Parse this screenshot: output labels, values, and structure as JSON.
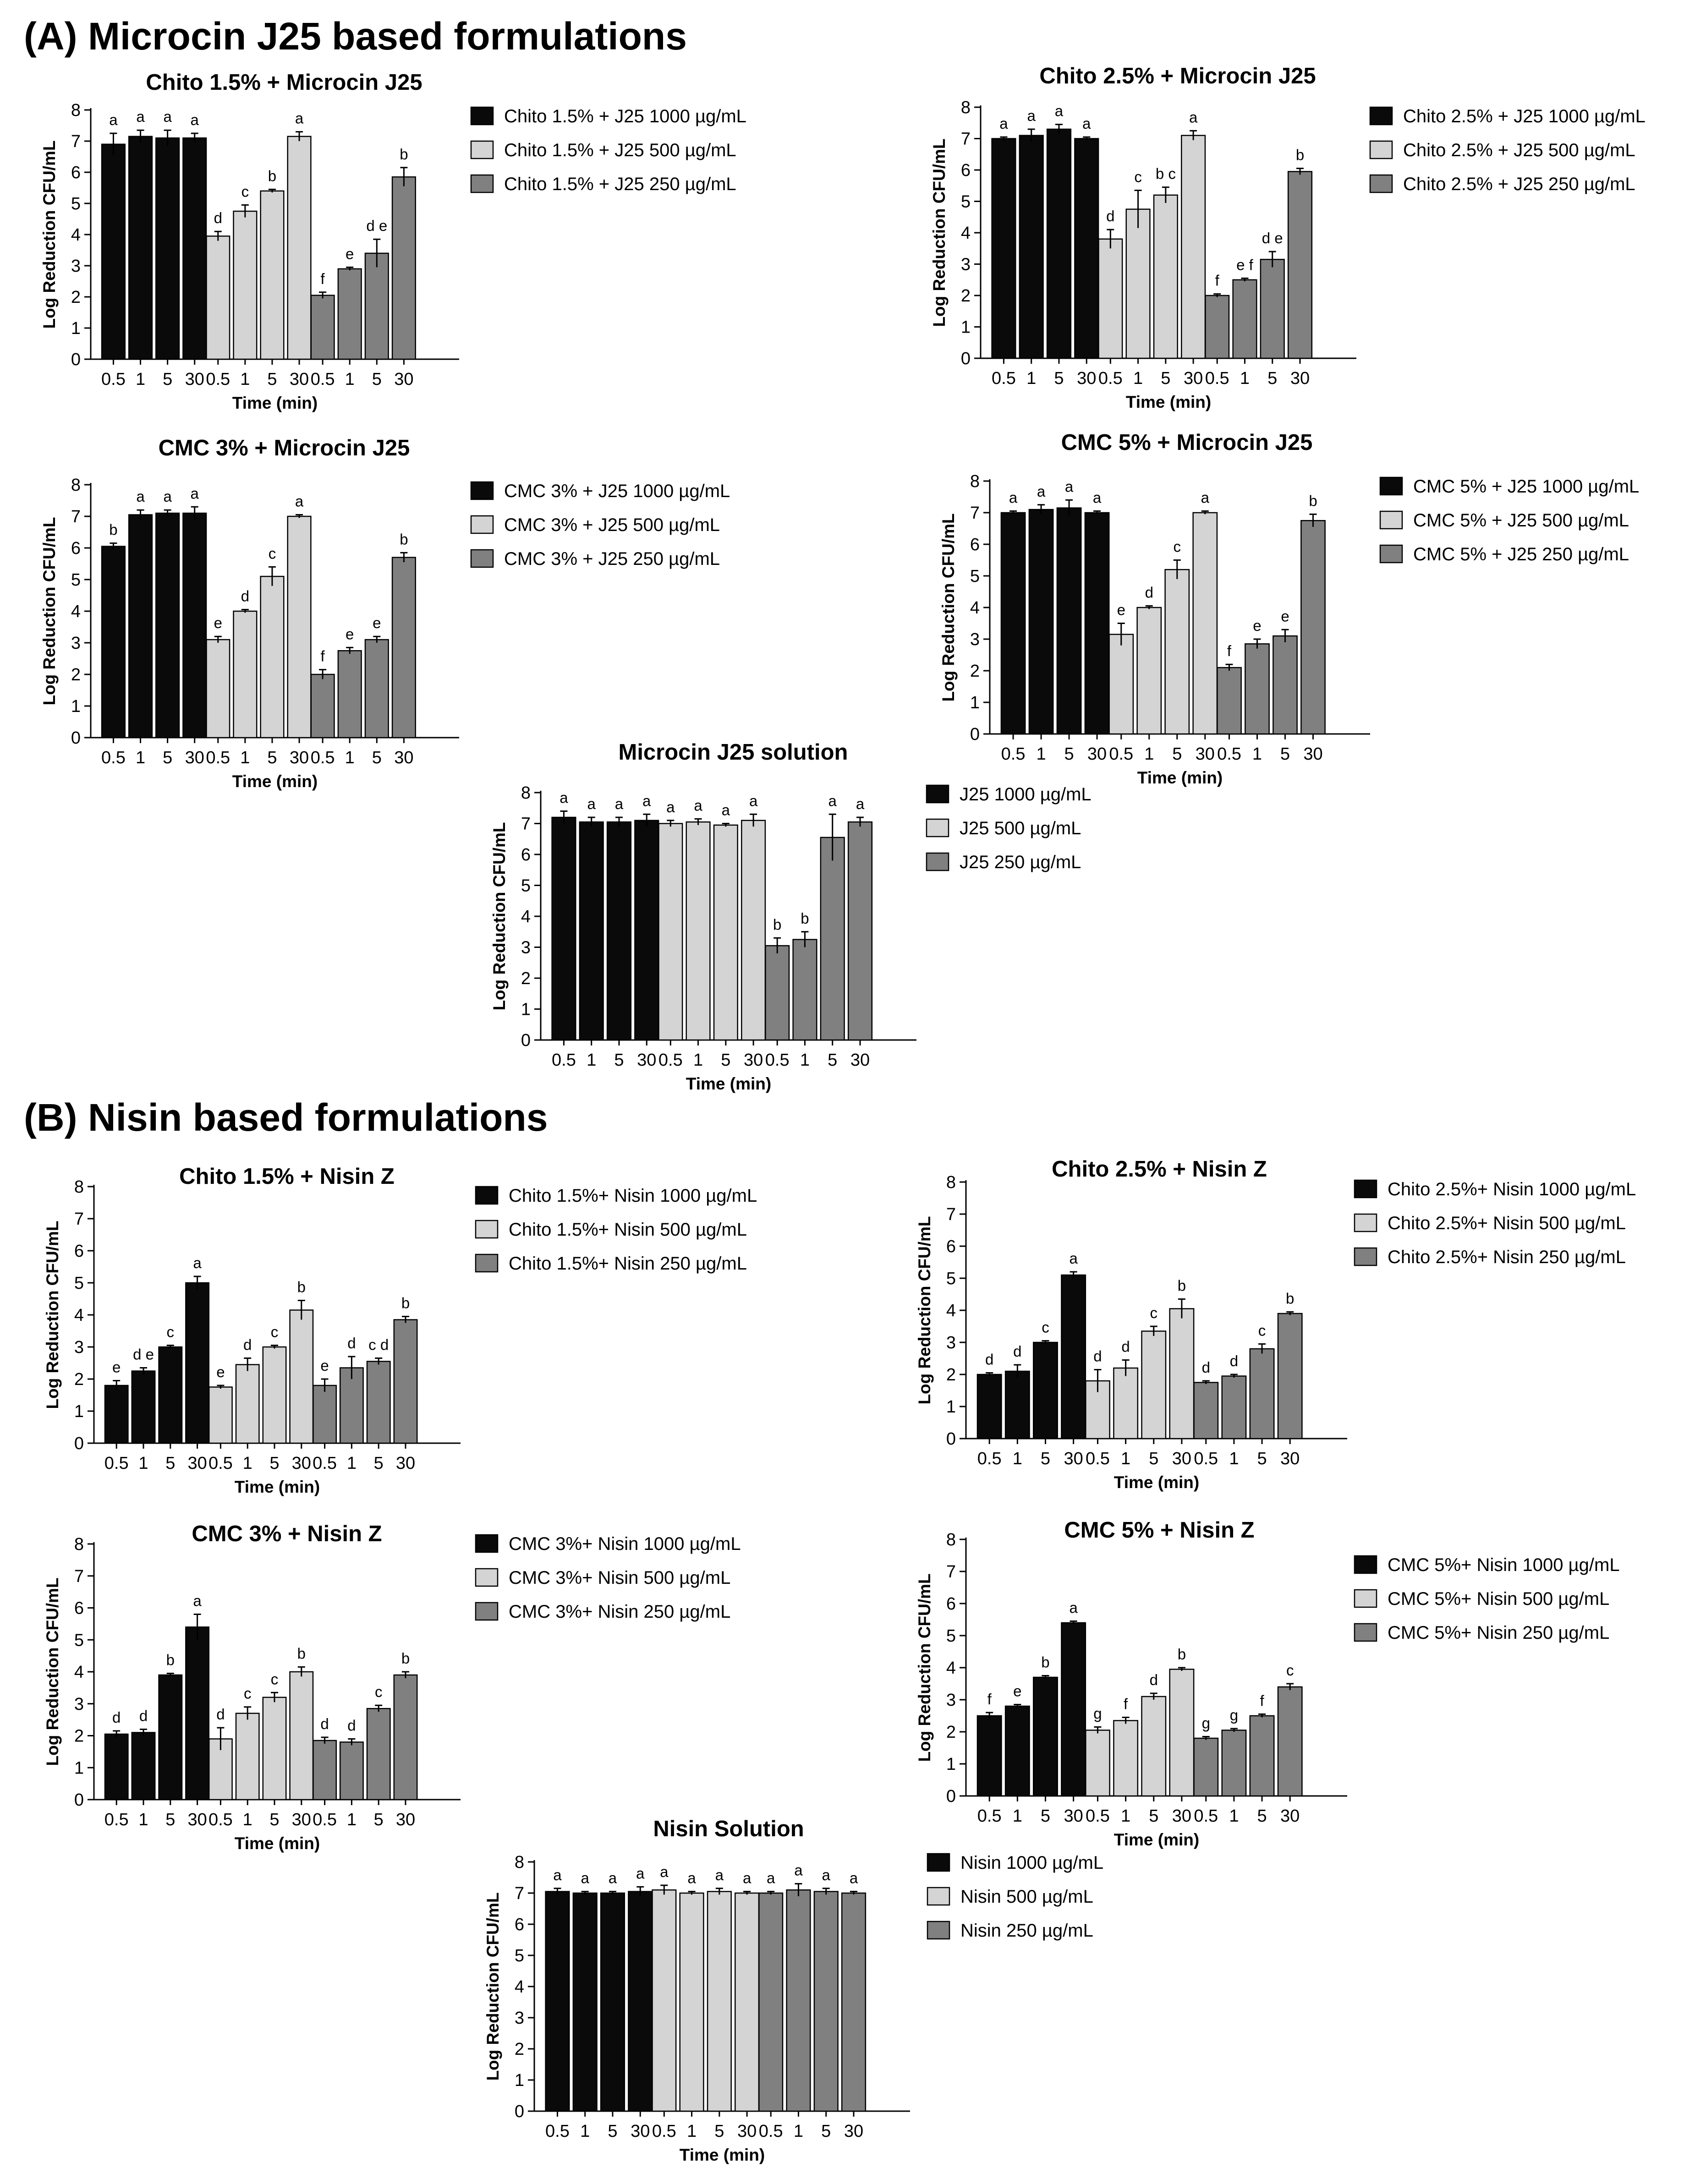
{
  "sections": [
    {
      "label": "(A) Microcin J25 based formulations"
    },
    {
      "label": "(B) Nisin based formulations"
    }
  ],
  "common": {
    "xlabel": "Time  (min)",
    "ylabel": "Log Reduction CFU/mL",
    "time_ticks": [
      "0.5",
      "1",
      "5",
      "30"
    ],
    "colors": [
      "#0a0a0a",
      "#d4d4d4",
      "#808080"
    ]
  },
  "chart_data": [
    {
      "type": "bar",
      "title": "Chito 1.5% + Microcin J25",
      "xlabel": "Time  (min)",
      "ylabel": "Log Reduction CFU/mL",
      "ylim": [
        0,
        8
      ],
      "categories": [
        "0.5",
        "1",
        "5",
        "30"
      ],
      "series": [
        {
          "name": "Chito 1.5% + J25 1000 µg/mL",
          "values": [
            6.9,
            7.15,
            7.1,
            7.1
          ],
          "errors": [
            0.35,
            0.2,
            0.25,
            0.15
          ],
          "labels": [
            "a",
            "a",
            "a",
            "a"
          ]
        },
        {
          "name": "Chito 1.5% + J25 500 µg/mL",
          "values": [
            3.95,
            4.75,
            5.4,
            7.15
          ],
          "errors": [
            0.15,
            0.2,
            0.05,
            0.15
          ],
          "labels": [
            "d",
            "c",
            "b",
            "a"
          ]
        },
        {
          "name": "Chito 1.5% + J25 250 µg/mL",
          "values": [
            2.05,
            2.9,
            3.4,
            5.85
          ],
          "errors": [
            0.1,
            0.05,
            0.45,
            0.3
          ],
          "labels": [
            "f",
            "e",
            "d e",
            "b"
          ]
        }
      ]
    },
    {
      "type": "bar",
      "title": "Chito 2.5% + Microcin J25",
      "xlabel": "Time  (min)",
      "ylabel": "Log Reduction CFU/mL",
      "ylim": [
        0,
        8
      ],
      "categories": [
        "0.5",
        "1",
        "5",
        "30"
      ],
      "series": [
        {
          "name": "Chito 2.5% + J25 1000 µg/mL",
          "values": [
            7.0,
            7.1,
            7.3,
            7.0
          ],
          "errors": [
            0.05,
            0.2,
            0.15,
            0.05
          ],
          "labels": [
            "a",
            "a",
            "a",
            "a"
          ]
        },
        {
          "name": "Chito 2.5% + J25 500 µg/mL",
          "values": [
            3.8,
            4.75,
            5.2,
            7.1
          ],
          "errors": [
            0.3,
            0.6,
            0.25,
            0.15
          ],
          "labels": [
            "d",
            "c",
            "b c",
            "a"
          ]
        },
        {
          "name": "Chito 2.5% + J25 250 µg/mL",
          "values": [
            2.0,
            2.5,
            3.15,
            5.95
          ],
          "errors": [
            0.05,
            0.05,
            0.25,
            0.1
          ],
          "labels": [
            "f",
            "e f",
            "d e",
            "b"
          ]
        }
      ]
    },
    {
      "type": "bar",
      "title": "CMC 3% + Microcin J25",
      "xlabel": "Time  (min)",
      "ylabel": "Log Reduction CFU/mL",
      "ylim": [
        0,
        8
      ],
      "categories": [
        "0.5",
        "1",
        "5",
        "30"
      ],
      "series": [
        {
          "name": "CMC 3% + J25 1000 µg/mL",
          "values": [
            6.05,
            7.05,
            7.1,
            7.1
          ],
          "errors": [
            0.1,
            0.15,
            0.1,
            0.2
          ],
          "labels": [
            "b",
            "a",
            "a",
            "a"
          ]
        },
        {
          "name": "CMC 3% + J25 500 µg/mL",
          "values": [
            3.1,
            4.0,
            5.1,
            7.0
          ],
          "errors": [
            0.1,
            0.05,
            0.3,
            0.05
          ],
          "labels": [
            "e",
            "d",
            "c",
            "a"
          ]
        },
        {
          "name": "CMC 3% + J25 250 µg/mL",
          "values": [
            2.0,
            2.75,
            3.1,
            5.7
          ],
          "errors": [
            0.15,
            0.1,
            0.1,
            0.15
          ],
          "labels": [
            "f",
            "e",
            "e",
            "b"
          ]
        }
      ]
    },
    {
      "type": "bar",
      "title": "CMC 5% + Microcin J25",
      "xlabel": "Time  (min)",
      "ylabel": "Log Reduction CFU/mL",
      "ylim": [
        0,
        8
      ],
      "categories": [
        "0.5",
        "1",
        "5",
        "30"
      ],
      "series": [
        {
          "name": "CMC 5% + J25 1000 µg/mL",
          "values": [
            7.0,
            7.1,
            7.15,
            7.0
          ],
          "errors": [
            0.05,
            0.15,
            0.25,
            0.05
          ],
          "labels": [
            "a",
            "a",
            "a",
            "a"
          ]
        },
        {
          "name": "CMC 5% + J25 500 µg/mL",
          "values": [
            3.15,
            4.0,
            5.2,
            7.0
          ],
          "errors": [
            0.35,
            0.05,
            0.3,
            0.05
          ],
          "labels": [
            "e",
            "d",
            "c",
            "a"
          ]
        },
        {
          "name": "CMC 5% + J25 250 µg/mL",
          "values": [
            2.1,
            2.85,
            3.1,
            6.75
          ],
          "errors": [
            0.1,
            0.15,
            0.2,
            0.2
          ],
          "labels": [
            "f",
            "e",
            "e",
            "b"
          ]
        }
      ]
    },
    {
      "type": "bar",
      "title": "Microcin J25 solution",
      "xlabel": "Time  (min)",
      "ylabel": "Log Reduction CFU/mL",
      "ylim": [
        0,
        8
      ],
      "categories": [
        "0.5",
        "1",
        "5",
        "30"
      ],
      "series": [
        {
          "name": "J25 1000 µg/mL",
          "values": [
            7.2,
            7.05,
            7.05,
            7.1
          ],
          "errors": [
            0.2,
            0.15,
            0.15,
            0.2
          ],
          "labels": [
            "a",
            "a",
            "a",
            "a"
          ]
        },
        {
          "name": "J25 500 µg/mL",
          "values": [
            7.0,
            7.05,
            6.95,
            7.1
          ],
          "errors": [
            0.1,
            0.1,
            0.05,
            0.2
          ],
          "labels": [
            "a",
            "a",
            "a",
            "a"
          ]
        },
        {
          "name": "J25 250 µg/mL",
          "values": [
            3.05,
            3.25,
            6.55,
            7.05
          ],
          "errors": [
            0.25,
            0.25,
            0.75,
            0.15
          ],
          "labels": [
            "b",
            "b",
            "a",
            "a"
          ]
        }
      ]
    },
    {
      "type": "bar",
      "title": "Chito 1.5% + Nisin Z",
      "xlabel": "Time  (min)",
      "ylabel": "Log Reduction CFU/mL",
      "ylim": [
        0,
        8
      ],
      "categories": [
        "0.5",
        "1",
        "5",
        "30"
      ],
      "series": [
        {
          "name": "Chito 1.5%+ Nisin 1000 µg/mL",
          "values": [
            1.8,
            2.25,
            3.0,
            5.0
          ],
          "errors": [
            0.15,
            0.1,
            0.05,
            0.2
          ],
          "labels": [
            "e",
            "d e",
            "c",
            "a"
          ]
        },
        {
          "name": "Chito 1.5%+ Nisin 500 µg/mL",
          "values": [
            1.75,
            2.45,
            3.0,
            4.15
          ],
          "errors": [
            0.05,
            0.2,
            0.05,
            0.3
          ],
          "labels": [
            "e",
            "d",
            "c",
            "b"
          ]
        },
        {
          "name": "Chito 1.5%+ Nisin 250 µg/mL",
          "values": [
            1.8,
            2.35,
            2.55,
            3.85
          ],
          "errors": [
            0.2,
            0.35,
            0.1,
            0.1
          ],
          "labels": [
            "e",
            "d",
            "c d",
            "b"
          ]
        }
      ]
    },
    {
      "type": "bar",
      "title": "Chito 2.5% + Nisin Z",
      "xlabel": "Time  (min)",
      "ylabel": "Log Reduction CFU/mL",
      "ylim": [
        0,
        8
      ],
      "categories": [
        "0.5",
        "1",
        "5",
        "30"
      ],
      "series": [
        {
          "name": "Chito 2.5%+ Nisin 1000 µg/mL",
          "values": [
            2.0,
            2.1,
            3.0,
            5.1
          ],
          "errors": [
            0.05,
            0.2,
            0.05,
            0.1
          ],
          "labels": [
            "d",
            "d",
            "c",
            "a"
          ]
        },
        {
          "name": "Chito 2.5%+ Nisin 500 µg/mL",
          "values": [
            1.8,
            2.2,
            3.35,
            4.05
          ],
          "errors": [
            0.35,
            0.25,
            0.15,
            0.3
          ],
          "labels": [
            "d",
            "d",
            "c",
            "b"
          ]
        },
        {
          "name": "Chito 2.5%+ Nisin 250 µg/mL",
          "values": [
            1.75,
            1.95,
            2.8,
            3.9
          ],
          "errors": [
            0.05,
            0.05,
            0.15,
            0.05
          ],
          "labels": [
            "d",
            "d",
            "c",
            "b"
          ]
        }
      ]
    },
    {
      "type": "bar",
      "title": "CMC 3% + Nisin Z",
      "xlabel": "Time  (min)",
      "ylabel": "Log Reduction CFU/mL",
      "ylim": [
        0,
        8
      ],
      "categories": [
        "0.5",
        "1",
        "5",
        "30"
      ],
      "series": [
        {
          "name": "CMC 3%+ Nisin 1000 µg/mL",
          "values": [
            2.05,
            2.1,
            3.9,
            5.4
          ],
          "errors": [
            0.1,
            0.1,
            0.05,
            0.4
          ],
          "labels": [
            "d",
            "d",
            "b",
            "a"
          ]
        },
        {
          "name": "CMC 3%+ Nisin 500 µg/mL",
          "values": [
            1.9,
            2.7,
            3.2,
            4.0
          ],
          "errors": [
            0.35,
            0.2,
            0.15,
            0.15
          ],
          "labels": [
            "d",
            "c",
            "c",
            "b"
          ]
        },
        {
          "name": "CMC 3%+ Nisin 250 µg/mL",
          "values": [
            1.85,
            1.8,
            2.85,
            3.9
          ],
          "errors": [
            0.1,
            0.1,
            0.1,
            0.1
          ],
          "labels": [
            "d",
            "d",
            "c",
            "b"
          ]
        }
      ]
    },
    {
      "type": "bar",
      "title": "CMC 5% + Nisin Z",
      "xlabel": "Time  (min)",
      "ylabel": "Log Reduction CFU/mL",
      "ylim": [
        0,
        8
      ],
      "categories": [
        "0.5",
        "1",
        "5",
        "30"
      ],
      "series": [
        {
          "name": "CMC 5%+ Nisin 1000 µg/mL",
          "values": [
            2.5,
            2.8,
            3.7,
            5.4
          ],
          "errors": [
            0.1,
            0.05,
            0.05,
            0.05
          ],
          "labels": [
            "f",
            "e",
            "b",
            "a"
          ]
        },
        {
          "name": "CMC 5%+ Nisin 500 µg/mL",
          "values": [
            2.05,
            2.35,
            3.1,
            3.95
          ],
          "errors": [
            0.1,
            0.1,
            0.1,
            0.05
          ],
          "labels": [
            "g",
            "f",
            "d",
            "b"
          ]
        },
        {
          "name": "CMC 5%+ Nisin 250 µg/mL",
          "values": [
            1.8,
            2.05,
            2.5,
            3.4
          ],
          "errors": [
            0.05,
            0.05,
            0.05,
            0.1
          ],
          "labels": [
            "g",
            "g",
            "f",
            "c"
          ]
        }
      ]
    },
    {
      "type": "bar",
      "title": "Nisin Solution",
      "xlabel": "Time  (min)",
      "ylabel": "Log Reduction CFU/mL",
      "ylim": [
        0,
        8
      ],
      "categories": [
        "0.5",
        "1",
        "5",
        "30"
      ],
      "series": [
        {
          "name": "Nisin 1000 µg/mL",
          "values": [
            7.05,
            7.0,
            7.0,
            7.05
          ],
          "errors": [
            0.1,
            0.05,
            0.05,
            0.15
          ],
          "labels": [
            "a",
            "a",
            "a",
            "a"
          ]
        },
        {
          "name": "Nisin 500 µg/mL",
          "values": [
            7.1,
            7.0,
            7.05,
            7.0
          ],
          "errors": [
            0.15,
            0.05,
            0.1,
            0.05
          ],
          "labels": [
            "a",
            "a",
            "a",
            "a"
          ]
        },
        {
          "name": "Nisin 250 µg/mL",
          "values": [
            7.0,
            7.1,
            7.05,
            7.0
          ],
          "errors": [
            0.05,
            0.2,
            0.1,
            0.05
          ],
          "labels": [
            "a",
            "a",
            "a",
            "a"
          ]
        }
      ]
    }
  ]
}
